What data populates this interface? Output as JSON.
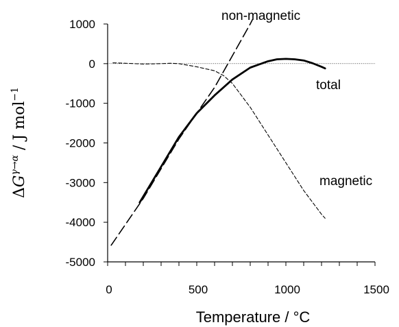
{
  "chart_data": {
    "type": "line",
    "title": "",
    "xlabel": "Temperature / °C",
    "ylabel": {
      "delta": "Δ",
      "G": "G",
      "superscript": "γ→α",
      "unit_sep": " / ",
      "unit_J": "J mol",
      "unit_exp": "−1"
    },
    "xlim": [
      0,
      1500
    ],
    "ylim": [
      -5000,
      1000
    ],
    "x_ticks": [
      "0",
      "500",
      "1000",
      "1500"
    ],
    "y_ticks": [
      "1000",
      "0",
      "-1000",
      "-2000",
      "-3000",
      "-4000",
      "-5000"
    ],
    "x_tick_values": [
      0,
      500,
      1000,
      1500
    ],
    "y_tick_values": [
      1000,
      0,
      -1000,
      -2000,
      -3000,
      -4000,
      -5000
    ],
    "x_minor_step": 100,
    "y_minor_step": 1000,
    "zero_reference_line": true,
    "grid": false,
    "legend": "none",
    "series": [
      {
        "name": "total",
        "style": "solid-thick",
        "color": "#000000",
        "x": [
          180,
          300,
          400,
          500,
          600,
          700,
          800,
          850,
          900,
          950,
          1000,
          1050,
          1100,
          1150,
          1200,
          1220
        ],
        "y": [
          -3500,
          -2600,
          -1850,
          -1250,
          -800,
          -400,
          -100,
          -20,
          60,
          110,
          120,
          110,
          80,
          10,
          -80,
          -120
        ]
      },
      {
        "name": "non-magnetic",
        "style": "long-dash",
        "color": "#000000",
        "x": [
          20,
          200,
          400,
          600,
          700,
          800,
          860
        ],
        "y": [
          -4580,
          -3400,
          -1900,
          -600,
          200,
          1000,
          1530
        ]
      },
      {
        "name": "magnetic",
        "style": "short-dash",
        "color": "#000000",
        "x": [
          30,
          100,
          200,
          300,
          350,
          400,
          500,
          600,
          650,
          700,
          800,
          900,
          1000,
          1100,
          1150,
          1200,
          1220
        ],
        "y": [
          20,
          10,
          -10,
          0,
          10,
          0,
          -80,
          -180,
          -300,
          -500,
          -1100,
          -1800,
          -2500,
          -3200,
          -3500,
          -3800,
          -3900
        ]
      }
    ],
    "series_labels": [
      {
        "text": "non-magnetic",
        "anchor": "above series end"
      },
      {
        "text": "total",
        "anchor": "right, below curve"
      },
      {
        "text": "magnetic",
        "anchor": "right of descending dash"
      }
    ]
  }
}
